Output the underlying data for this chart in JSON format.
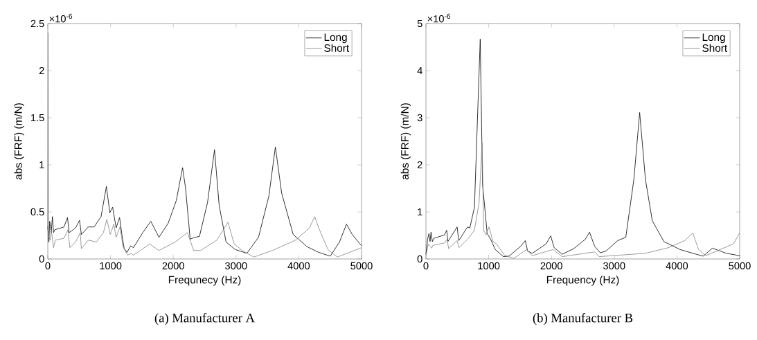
{
  "chart_data": [
    {
      "type": "line",
      "xlabel": "Frequnecy (Hz)",
      "ylabel": "abs (FRF) (m/N)",
      "annotations": [
        "×10$^{-6}$",
        "(a) Manufacturer A"
      ],
      "xlim": [
        0,
        5000
      ],
      "xticks": [
        0,
        1000,
        2000,
        3000,
        4000,
        5000
      ],
      "ylim": [
        0,
        2.5
      ],
      "yticks": [
        0,
        0.5,
        1,
        1.5,
        2,
        2.5
      ],
      "legend": "top right",
      "grid": false,
      "series": [
        {
          "name": "Long",
          "color": "#000000",
          "x": [
            0,
            18,
            30,
            55,
            74,
            92,
            111,
            258,
            314,
            340,
            443,
            506,
            535,
            646,
            738,
            849,
            934,
            989,
            1033,
            1089,
            1144,
            1181,
            1218,
            1262,
            1321,
            1365,
            1513,
            1642,
            1771,
            1919,
            2048,
            2148,
            2196,
            2269,
            2343,
            2417,
            2546,
            2657,
            2731,
            2841,
            2989,
            3173,
            3358,
            3524,
            3627,
            3727,
            3911,
            4133,
            4317,
            4502,
            4649,
            4760,
            4852,
            5000
          ],
          "values": [
            0.35,
            0.18,
            0.4,
            0.28,
            0.45,
            0.28,
            0.31,
            0.34,
            0.44,
            0.28,
            0.33,
            0.41,
            0.26,
            0.34,
            0.34,
            0.45,
            0.77,
            0.49,
            0.55,
            0.33,
            0.44,
            0.26,
            0.11,
            0.07,
            0.14,
            0.12,
            0.28,
            0.4,
            0.23,
            0.38,
            0.62,
            0.97,
            0.75,
            0.21,
            0.23,
            0.24,
            0.6,
            1.16,
            0.57,
            0.18,
            0.1,
            0.06,
            0.23,
            0.67,
            1.19,
            0.7,
            0.26,
            0.13,
            0.07,
            0.03,
            0.18,
            0.37,
            0.26,
            0.14
          ]
        },
        {
          "name": "Short",
          "color": "#808080",
          "x": [
            0,
            5,
            12,
            37,
            55,
            92,
            118,
            258,
            321,
            351,
            443,
            517,
            535,
            646,
            775,
            886,
            941,
            996,
            1052,
            1089,
            1151,
            1199,
            1273,
            1328,
            1365,
            1624,
            1771,
            2030,
            2225,
            2325,
            2435,
            2694,
            2871,
            2970,
            3100,
            3284,
            3579,
            3948,
            4170,
            4255,
            4317,
            4465,
            4613,
            5000
          ],
          "values": [
            0.3,
            2.4,
            0.25,
            0.2,
            0.31,
            0.12,
            0.2,
            0.22,
            0.31,
            0.12,
            0.18,
            0.28,
            0.11,
            0.2,
            0.18,
            0.28,
            0.42,
            0.26,
            0.37,
            0.23,
            0.34,
            0.13,
            0.04,
            0.06,
            0.04,
            0.16,
            0.09,
            0.18,
            0.28,
            0.09,
            0.09,
            0.2,
            0.39,
            0.16,
            0.09,
            0.02,
            0.09,
            0.2,
            0.33,
            0.45,
            0.33,
            0.1,
            0.02,
            0.12
          ]
        }
      ]
    },
    {
      "type": "line",
      "xlabel": "Frequency (Hz)",
      "ylabel": "abs (FRF) (m/N)",
      "annotations": [
        "×10$^{-6}$",
        "(b) Manufacturer B"
      ],
      "xlim": [
        0,
        5000
      ],
      "xticks": [
        0,
        1000,
        2000,
        3000,
        4000,
        5000
      ],
      "ylim": [
        0,
        5
      ],
      "yticks": [
        0,
        1,
        2,
        3,
        4,
        5
      ],
      "legend": "top right",
      "grid": false,
      "series": [
        {
          "name": "Long",
          "color": "#000000",
          "x": [
            0,
            26,
            48,
            66,
            81,
            103,
            129,
            295,
            331,
            350,
            497,
            523,
            663,
            700,
            773,
            865,
            902,
            976,
            1031,
            1105,
            1233,
            1325,
            1510,
            1583,
            1620,
            1694,
            1915,
            1988,
            2043,
            2172,
            2356,
            2541,
            2607,
            2688,
            2780,
            2872,
            3056,
            3185,
            3314,
            3406,
            3498,
            3608,
            3792,
            4050,
            4308,
            4418,
            4565,
            4786,
            5000
          ],
          "values": [
            0.1,
            0.42,
            0.54,
            0.37,
            0.57,
            0.37,
            0.44,
            0.51,
            0.61,
            0.37,
            0.68,
            0.39,
            0.68,
            0.66,
            1.1,
            4.67,
            1.59,
            0.54,
            0.42,
            0.2,
            0.05,
            0.06,
            0.27,
            0.39,
            0.17,
            0.12,
            0.32,
            0.49,
            0.24,
            0.1,
            0.22,
            0.42,
            0.57,
            0.27,
            0.13,
            0.17,
            0.39,
            0.46,
            1.69,
            3.11,
            1.69,
            0.81,
            0.37,
            0.2,
            0.1,
            0.06,
            0.23,
            0.12,
            0.07
          ]
        },
        {
          "name": "Short",
          "color": "#808080",
          "x": [
            0,
            37,
            92,
            110,
            295,
            339,
            361,
            497,
            527,
            663,
            773,
            847,
            895,
            920,
            957,
            1005,
            1068,
            1123,
            1252,
            1399,
            1602,
            1694,
            2025,
            2172,
            2688,
            2761,
            3498,
            3866,
            4124,
            4253,
            4345,
            4455,
            4602,
            4897,
            5000
          ],
          "values": [
            0.07,
            0.32,
            0.23,
            0.29,
            0.34,
            0.42,
            0.22,
            0.39,
            0.24,
            0.42,
            0.61,
            1.2,
            2.47,
            0.61,
            0.51,
            0.68,
            0.37,
            0.32,
            0.08,
            0.01,
            0.2,
            0.07,
            0.2,
            0.05,
            0.15,
            0.05,
            0.12,
            0.24,
            0.39,
            0.55,
            0.2,
            0.07,
            0.15,
            0.32,
            0.55
          ]
        }
      ]
    }
  ]
}
